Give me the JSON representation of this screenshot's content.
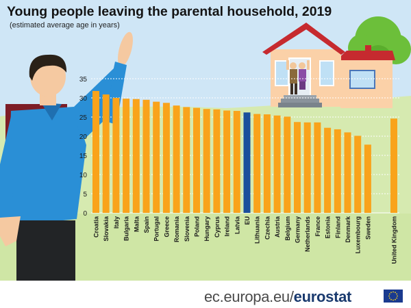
{
  "title": "Young people leaving the parental household, 2019",
  "subtitle": "(estimated average age in years)",
  "footer": {
    "domain": "ec.europa.eu/",
    "brand": "eurostat"
  },
  "colors": {
    "bar": "#f9a31b",
    "highlight": "#1a4f9c",
    "sky": "#cfe6f6",
    "grass": "#cfe6a5",
    "gridline": "#ffffff"
  },
  "icons": {
    "flag": "eu-flag-icon",
    "person": "waving-man-illustration",
    "house": "house-illustration",
    "tree": "tree-illustration"
  },
  "chart_data": {
    "type": "bar",
    "categories": [
      "Croatia",
      "Slovakia",
      "Italy",
      "Bulgaria",
      "Malta",
      "Spain",
      "Portugal",
      "Greece",
      "Romania",
      "Slovenia",
      "Poland",
      "Hungary",
      "Cyprus",
      "Ireland",
      "Latvia",
      "EU",
      "Lithuania",
      "Czechia",
      "Austria",
      "Belgium",
      "Germany",
      "Netherlands",
      "France",
      "Estonia",
      "Finland",
      "Denmark",
      "Luxembourg",
      "Sweden",
      "United Kingdom"
    ],
    "values": [
      31.8,
      30.9,
      30.0,
      29.8,
      29.7,
      29.5,
      29.0,
      28.7,
      28.0,
      27.6,
      27.4,
      27.1,
      27.0,
      26.7,
      26.6,
      26.2,
      25.8,
      25.7,
      25.4,
      25.1,
      23.7,
      23.6,
      23.6,
      22.2,
      21.8,
      21.0,
      20.1,
      17.8,
      24.6
    ],
    "highlight": "EU",
    "gap_before": "United Kingdom",
    "yticks": [
      0,
      5,
      10,
      15,
      20,
      25,
      30,
      35
    ],
    "ylim": [
      0,
      35
    ],
    "grid": true,
    "legend": "none",
    "xlabel": "",
    "ylabel": ""
  }
}
